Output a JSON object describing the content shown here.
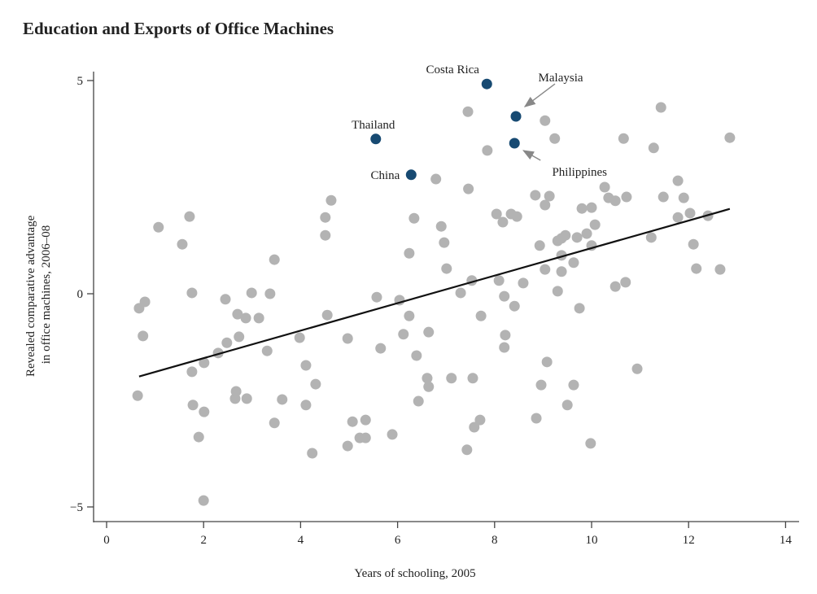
{
  "chart_data": {
    "type": "scatter",
    "title": "Education and Exports of Office Machines",
    "xlabel": "Years of schooling, 2005",
    "ylabel_lines": [
      "Revealed comparative advantage",
      "in office machines, 2006–08"
    ],
    "xlim": [
      0,
      14
    ],
    "ylim": [
      -5.3,
      5.2
    ],
    "xticks": [
      0,
      2,
      4,
      6,
      8,
      10,
      12,
      14
    ],
    "yticks": [
      {
        "value": 5,
        "label": "5"
      },
      {
        "value": 0,
        "label": "0"
      },
      {
        "value": -5,
        "label": "−5"
      }
    ],
    "grid": false,
    "colors": {
      "points": "#b3b3b3",
      "highlight": "#174a72",
      "fit_line": "#111111",
      "arrow": "#888888"
    },
    "fit_line": {
      "x": [
        0.67,
        12.85
      ],
      "y": [
        -1.94,
        1.99
      ]
    },
    "highlighted": [
      {
        "name": "Costa Rica",
        "x": 7.84,
        "y": 4.92,
        "label_pos": "above-left",
        "arrow": false
      },
      {
        "name": "Malaysia",
        "x": 8.44,
        "y": 4.16,
        "label_pos": "upper-right",
        "arrow": true
      },
      {
        "name": "Philippines",
        "x": 8.41,
        "y": 3.53,
        "label_pos": "lower-right",
        "arrow": true
      },
      {
        "name": "Thailand",
        "x": 5.55,
        "y": 3.63,
        "label_pos": "above",
        "arrow": false
      },
      {
        "name": "China",
        "x": 6.28,
        "y": 2.79,
        "label_pos": "left",
        "arrow": false
      }
    ],
    "points": [
      [
        0.67,
        -0.34
      ],
      [
        0.79,
        -0.19
      ],
      [
        0.75,
        -0.99
      ],
      [
        0.64,
        -2.39
      ],
      [
        1.07,
        1.56
      ],
      [
        1.56,
        1.16
      ],
      [
        1.71,
        1.81
      ],
      [
        1.76,
        0.02
      ],
      [
        1.76,
        -1.83
      ],
      [
        1.78,
        -2.61
      ],
      [
        1.9,
        -3.36
      ],
      [
        2.0,
        -4.85
      ],
      [
        2.01,
        -1.62
      ],
      [
        2.01,
        -2.77
      ],
      [
        2.3,
        -1.39
      ],
      [
        2.45,
        -0.13
      ],
      [
        2.48,
        -1.15
      ],
      [
        2.65,
        -2.46
      ],
      [
        2.67,
        -2.29
      ],
      [
        2.7,
        -0.48
      ],
      [
        2.73,
        -1.01
      ],
      [
        2.87,
        -0.57
      ],
      [
        2.89,
        -2.46
      ],
      [
        2.99,
        0.02
      ],
      [
        3.14,
        -0.57
      ],
      [
        3.31,
        -1.34
      ],
      [
        3.37,
        0.0
      ],
      [
        3.46,
        0.8
      ],
      [
        3.46,
        -3.03
      ],
      [
        3.62,
        -2.48
      ],
      [
        3.98,
        -1.03
      ],
      [
        4.11,
        -1.68
      ],
      [
        4.11,
        -2.61
      ],
      [
        4.24,
        -3.74
      ],
      [
        4.31,
        -2.12
      ],
      [
        4.51,
        1.79
      ],
      [
        4.51,
        1.37
      ],
      [
        4.55,
        -0.5
      ],
      [
        4.63,
        2.19
      ],
      [
        4.97,
        -1.05
      ],
      [
        4.97,
        -3.57
      ],
      [
        5.07,
        -3.0
      ],
      [
        5.22,
        -3.38
      ],
      [
        5.34,
        -2.96
      ],
      [
        5.34,
        -3.38
      ],
      [
        5.57,
        -0.08
      ],
      [
        5.65,
        -1.28
      ],
      [
        5.89,
        -3.3
      ],
      [
        6.04,
        -0.15
      ],
      [
        6.12,
        -0.95
      ],
      [
        6.24,
        0.95
      ],
      [
        6.24,
        -0.52
      ],
      [
        6.34,
        1.77
      ],
      [
        6.39,
        -1.45
      ],
      [
        6.43,
        -2.52
      ],
      [
        6.61,
        -1.98
      ],
      [
        6.64,
        -2.18
      ],
      [
        6.64,
        -0.9
      ],
      [
        6.79,
        2.69
      ],
      [
        6.9,
        1.58
      ],
      [
        6.96,
        1.2
      ],
      [
        7.01,
        0.59
      ],
      [
        7.11,
        -1.98
      ],
      [
        7.3,
        0.02
      ],
      [
        7.45,
        4.27
      ],
      [
        7.43,
        -3.66
      ],
      [
        7.46,
        2.46
      ],
      [
        7.53,
        0.31
      ],
      [
        7.55,
        -1.98
      ],
      [
        7.58,
        -3.13
      ],
      [
        7.7,
        -2.96
      ],
      [
        7.72,
        -0.52
      ],
      [
        7.85,
        3.36
      ],
      [
        8.04,
        1.87
      ],
      [
        8.09,
        0.31
      ],
      [
        8.17,
        1.68
      ],
      [
        8.2,
        -0.06
      ],
      [
        8.22,
        -0.97
      ],
      [
        8.2,
        -1.26
      ],
      [
        8.34,
        1.87
      ],
      [
        8.41,
        -0.29
      ],
      [
        8.46,
        1.81
      ],
      [
        8.59,
        0.25
      ],
      [
        8.84,
        2.31
      ],
      [
        8.86,
        -2.92
      ],
      [
        8.93,
        1.13
      ],
      [
        8.96,
        -2.14
      ],
      [
        9.04,
        4.06
      ],
      [
        9.04,
        0.57
      ],
      [
        9.08,
        -1.6
      ],
      [
        9.04,
        2.08
      ],
      [
        9.13,
        2.29
      ],
      [
        9.24,
        3.64
      ],
      [
        9.3,
        1.24
      ],
      [
        9.3,
        0.06
      ],
      [
        9.38,
        0.52
      ],
      [
        9.38,
        0.9
      ],
      [
        9.38,
        1.3
      ],
      [
        9.5,
        -2.61
      ],
      [
        9.46,
        1.37
      ],
      [
        9.63,
        -2.14
      ],
      [
        9.63,
        0.73
      ],
      [
        9.7,
        1.32
      ],
      [
        9.75,
        -0.34
      ],
      [
        9.8,
        2.0
      ],
      [
        9.9,
        1.41
      ],
      [
        9.98,
        -3.51
      ],
      [
        10.0,
        1.13
      ],
      [
        10.0,
        2.02
      ],
      [
        10.07,
        1.62
      ],
      [
        10.27,
        2.5
      ],
      [
        10.35,
        2.25
      ],
      [
        10.49,
        0.17
      ],
      [
        10.49,
        2.18
      ],
      [
        10.66,
        3.64
      ],
      [
        10.7,
        0.27
      ],
      [
        10.72,
        2.27
      ],
      [
        10.94,
        -1.76
      ],
      [
        11.23,
        1.32
      ],
      [
        11.28,
        3.42
      ],
      [
        11.43,
        4.37
      ],
      [
        11.48,
        2.27
      ],
      [
        11.78,
        2.65
      ],
      [
        11.78,
        1.79
      ],
      [
        11.9,
        2.25
      ],
      [
        12.03,
        1.89
      ],
      [
        12.1,
        1.16
      ],
      [
        12.16,
        0.59
      ],
      [
        12.4,
        1.83
      ],
      [
        12.65,
        0.57
      ],
      [
        12.85,
        3.66
      ]
    ]
  }
}
